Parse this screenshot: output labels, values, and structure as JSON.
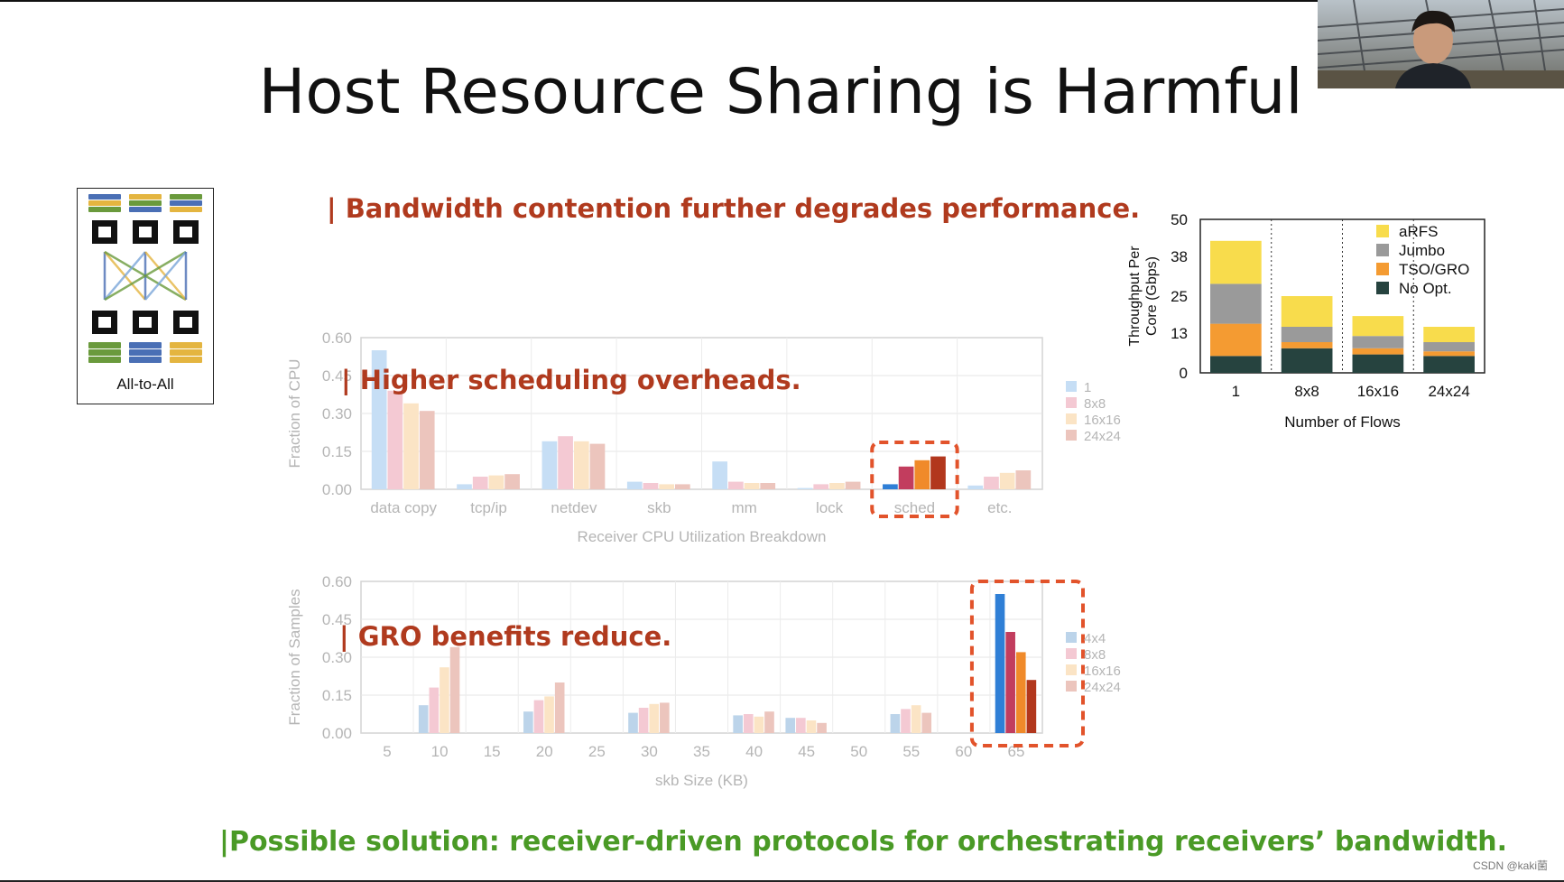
{
  "slide": {
    "title": "Host Resource Sharing is Harmful",
    "callout_bandwidth": "| Bandwidth contention further degrades performance.",
    "callout_scheduling": "| Higher scheduling overheads.",
    "callout_gro": "| GRO benefits reduce.",
    "callout_solution": "|Possible solution: receiver-driven protocols for orchestrating receivers’ bandwidth.",
    "topology_label": "All-to-All",
    "watermark": "CSDN @kaki菌",
    "colors": {
      "red_text": "#b03a1e",
      "green_text": "#4a9a26",
      "highlight_box": "#e2532b"
    }
  },
  "chart_data": [
    {
      "id": "throughput",
      "type": "bar",
      "stacked": true,
      "ylabel": "Throughput Per Core (Gbps)",
      "ylabel_lines": [
        "Throughput Per",
        "Core (Gbps)"
      ],
      "xlabel": "Number of Flows",
      "categories": [
        "1",
        "8x8",
        "16x16",
        "24x24"
      ],
      "ylim": [
        0,
        50
      ],
      "yticks": [
        "0",
        "13",
        "25",
        "38",
        "50"
      ],
      "legend_position": "top-right",
      "series": [
        {
          "name": "No Opt.",
          "color": "#26433f",
          "values": [
            5.5,
            8,
            6,
            5.5
          ]
        },
        {
          "name": "TSO/GRO",
          "color": "#f49b32",
          "values": [
            10.5,
            2,
            2,
            1.5
          ]
        },
        {
          "name": "Jumbo",
          "color": "#9a9a9a",
          "values": [
            13,
            5,
            4,
            3
          ]
        },
        {
          "name": "aRFS",
          "color": "#f8dc4c",
          "values": [
            14,
            10,
            6.5,
            5
          ]
        }
      ]
    },
    {
      "id": "cpu_breakdown",
      "type": "bar",
      "xlabel": "Receiver CPU Utilization Breakdown",
      "ylabel": "Fraction of CPU",
      "categories": [
        "data copy",
        "tcp/ip",
        "netdev",
        "skb",
        "mm",
        "lock",
        "sched",
        "etc."
      ],
      "ylim": [
        0,
        0.6
      ],
      "yticks": [
        "0.00",
        "0.15",
        "0.30",
        "0.45",
        "0.60"
      ],
      "legend_position": "right",
      "grid": true,
      "series": [
        {
          "name": "1",
          "values": [
            0.55,
            0.02,
            0.19,
            0.03,
            0.11,
            0.005,
            0.02,
            0.015
          ]
        },
        {
          "name": "8x8",
          "values": [
            0.39,
            0.05,
            0.21,
            0.025,
            0.03,
            0.02,
            0.09,
            0.05
          ]
        },
        {
          "name": "16x16",
          "values": [
            0.34,
            0.055,
            0.19,
            0.02,
            0.025,
            0.025,
            0.115,
            0.065
          ]
        },
        {
          "name": "24x24",
          "values": [
            0.31,
            0.06,
            0.18,
            0.02,
            0.025,
            0.03,
            0.13,
            0.075
          ]
        }
      ],
      "colors_faded": [
        "#c6def5",
        "#f4c9d3",
        "#fbe4c5",
        "#ecc5bd"
      ],
      "colors_highlight": [
        "#2f7fd6",
        "#c23d5e",
        "#f08a2a",
        "#b2371d"
      ],
      "highlight_category": "sched"
    },
    {
      "id": "skb_size",
      "type": "bar",
      "xlabel": "skb Size (KB)",
      "ylabel": "Fraction of Samples",
      "categories": [
        "5",
        "10",
        "15",
        "20",
        "25",
        "30",
        "35",
        "40",
        "45",
        "50",
        "55",
        "60",
        "65"
      ],
      "ylim": [
        0,
        0.6
      ],
      "yticks": [
        "0.00",
        "0.15",
        "0.30",
        "0.45",
        "0.60"
      ],
      "legend_position": "right",
      "grid": true,
      "series": [
        {
          "name": "4x4",
          "values": [
            0,
            0.11,
            0,
            0.085,
            0,
            0.08,
            0,
            0.07,
            0.06,
            0,
            0.075,
            0,
            0.55
          ]
        },
        {
          "name": "8x8",
          "values": [
            0,
            0.18,
            0,
            0.13,
            0,
            0.1,
            0,
            0.075,
            0.06,
            0,
            0.095,
            0,
            0.4
          ]
        },
        {
          "name": "16x16",
          "values": [
            0,
            0.26,
            0,
            0.145,
            0,
            0.115,
            0,
            0.065,
            0.05,
            0,
            0.11,
            0,
            0.32
          ]
        },
        {
          "name": "24x24",
          "values": [
            0,
            0.34,
            0,
            0.2,
            0,
            0.12,
            0,
            0.085,
            0.04,
            0,
            0.08,
            0,
            0.21
          ]
        }
      ],
      "colors_faded": [
        "#bcd4ea",
        "#f4c9d3",
        "#fbe4c5",
        "#ecc5bd"
      ],
      "colors_highlight": [
        "#2f7fd6",
        "#c23d5e",
        "#f08a2a",
        "#b2371d"
      ],
      "highlight_category": "65"
    }
  ]
}
